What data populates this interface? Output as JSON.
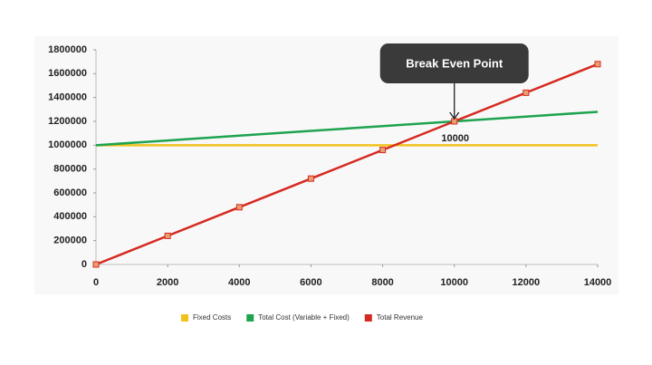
{
  "chart_data": {
    "type": "line",
    "x": [
      0,
      2000,
      4000,
      6000,
      8000,
      10000,
      12000,
      14000
    ],
    "series": [
      {
        "name": "Fixed Costs",
        "color": "#f2c21b",
        "values": [
          1000000,
          1000000,
          1000000,
          1000000,
          1000000,
          1000000,
          1000000,
          1000000
        ],
        "markers": false
      },
      {
        "name": "Total Cost (Variable + Fixed)",
        "color": "#1ea34f",
        "values": [
          1000000,
          1040000,
          1080000,
          1120000,
          1160000,
          1200000,
          1240000,
          1280000
        ],
        "markers": false
      },
      {
        "name": "Total Revenue",
        "color": "#d52a22",
        "values": [
          0,
          240000,
          480000,
          720000,
          960000,
          1200000,
          1440000,
          1680000
        ],
        "markers": true
      }
    ],
    "xlim": [
      0,
      14000
    ],
    "xticks": [
      0,
      2000,
      4000,
      6000,
      8000,
      10000,
      12000,
      14000
    ],
    "ylim": [
      0,
      1800000
    ],
    "yticks": [
      0,
      200000,
      400000,
      600000,
      800000,
      1000000,
      1200000,
      1400000,
      1600000,
      1800000
    ],
    "legend": "bottom",
    "annotations": [
      {
        "text": "Break Even Point",
        "x": 10000,
        "y": 1200000,
        "style": "callout"
      },
      {
        "text": "10000",
        "x": 10000,
        "y": 1200000,
        "style": "label"
      }
    ]
  }
}
